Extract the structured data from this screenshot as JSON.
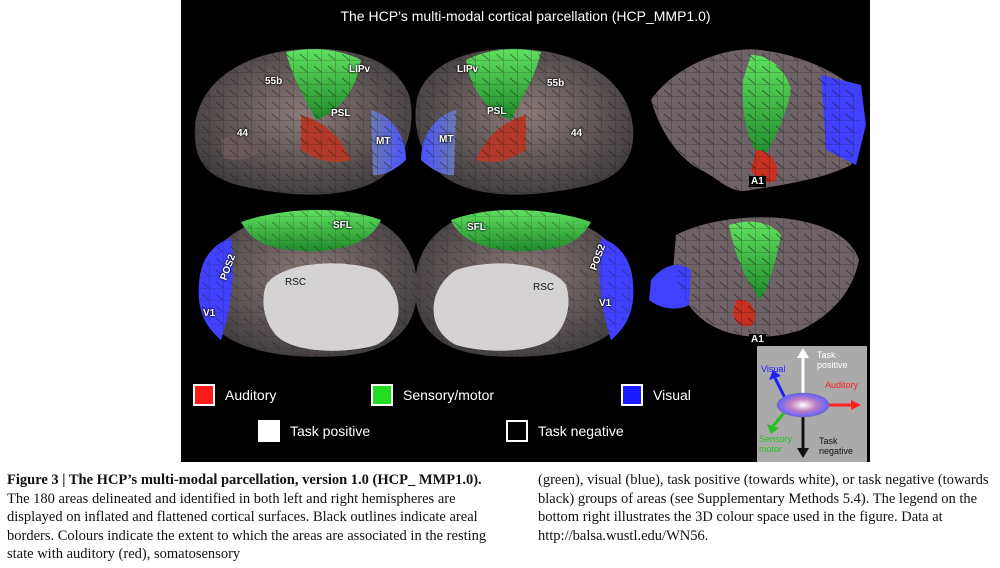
{
  "figure": {
    "title": "The HCP’s multi-modal cortical parcellation (HCP_MMP1.0)",
    "area_labels": {
      "left_lateral": [
        "55b",
        "LIPv",
        "PSL",
        "44",
        "MT"
      ],
      "right_lateral": [
        "LIPv",
        "55b",
        "PSL",
        "MT",
        "44"
      ],
      "left_medial": [
        "SFL",
        "POS2",
        "RSC",
        "V1"
      ],
      "right_medial": [
        "SFL",
        "POS2",
        "RSC",
        "V1"
      ],
      "flat_top": "A1",
      "flat_bottom": "A1"
    },
    "legend": [
      {
        "label": "Auditory",
        "color": "#ff1a1a"
      },
      {
        "label": "Sensory/motor",
        "color": "#22dd22"
      },
      {
        "label": "Visual",
        "color": "#1a1aff"
      },
      {
        "label": "Task positive",
        "color": "#ffffff"
      },
      {
        "label": "Task negative",
        "color": "#000000"
      }
    ],
    "colour_key": {
      "task_positive": "Task positive",
      "visual": "Visual",
      "auditory": "Auditory",
      "sensory_motor": "Sensory motor",
      "task_negative": "Task negative"
    }
  },
  "caption": {
    "label": "Figure 3 | The HCP’s multi-modal parcellation, version 1.0 (HCP_ MMP1.0).",
    "left_text": "The 180 areas delineated and identified in both left and right hemispheres are displayed on inflated and flattened cortical surfaces. Black outlines indicate areal borders. Colours indicate the extent to which the areas are associated in the resting state with auditory (red), somatosensory",
    "right_text": "(green), visual (blue), task positive (towards white), or task negative (towards black) groups of areas (see Supplementary Methods 5.4). The legend on the bottom right illustrates the 3D colour space used in the figure. Data at http://balsa.wustl.edu/WN56."
  }
}
